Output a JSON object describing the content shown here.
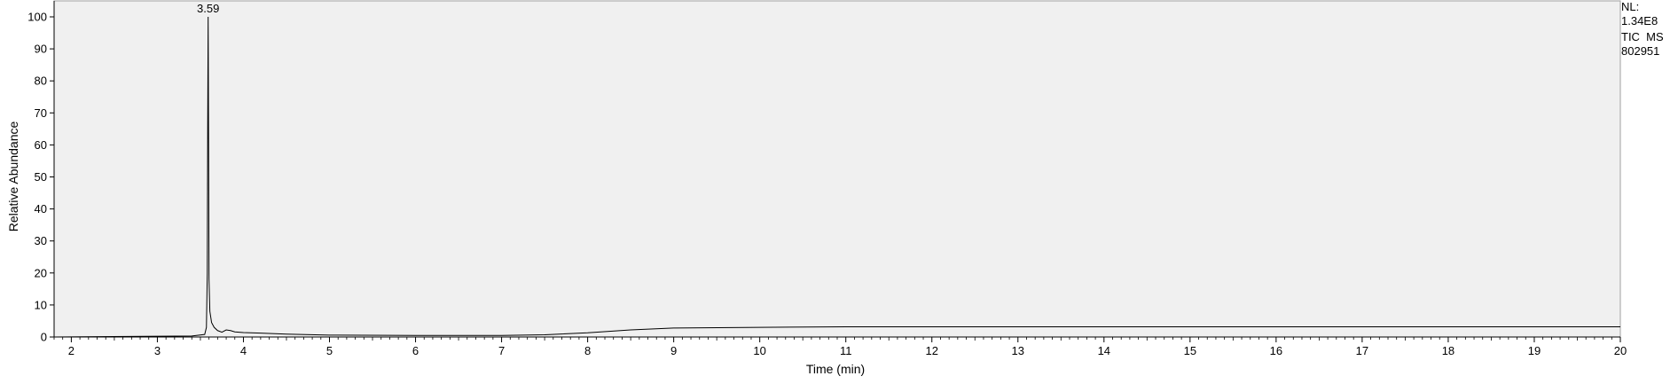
{
  "chart_data": {
    "type": "line",
    "title": "",
    "xlabel": "Time (min)",
    "ylabel": "Relative Abundance",
    "xlim": [
      1.8,
      20
    ],
    "ylim": [
      0,
      100
    ],
    "x_ticks": [
      2,
      3,
      4,
      5,
      6,
      7,
      8,
      9,
      10,
      11,
      12,
      13,
      14,
      15,
      16,
      17,
      18,
      19,
      20
    ],
    "y_ticks": [
      0,
      10,
      20,
      30,
      40,
      50,
      60,
      70,
      80,
      90,
      100
    ],
    "grid": false,
    "series": [
      {
        "x": [
          1.8,
          3.4,
          3.55,
          3.57,
          3.58,
          3.585,
          3.59,
          3.595,
          3.6,
          3.61,
          3.63,
          3.66,
          3.7,
          3.75,
          3.8,
          3.85,
          3.9,
          4.0,
          4.2,
          4.5,
          5.0,
          6.0,
          7.0,
          7.5,
          8.0,
          8.5,
          9.0,
          10.0,
          11.0,
          12.0,
          14.0,
          16.0,
          18.0,
          20.0
        ],
        "y": [
          0,
          0.3,
          0.8,
          3,
          20,
          66,
          100,
          62,
          18,
          8,
          4.5,
          3,
          2,
          1.5,
          2.2,
          2,
          1.6,
          1.4,
          1.2,
          0.9,
          0.6,
          0.5,
          0.5,
          0.7,
          1.3,
          2.2,
          2.8,
          3,
          3.2,
          3.2,
          3.2,
          3.2,
          3.2,
          3.2
        ]
      }
    ],
    "annotations": [
      {
        "text": "3.59",
        "x": 3.59,
        "y": 100
      }
    ]
  },
  "side_info": {
    "nl_label": "NL:",
    "nl_value": "1.34E8",
    "trace_type": "TIC  MS",
    "sample_id": "802951"
  }
}
